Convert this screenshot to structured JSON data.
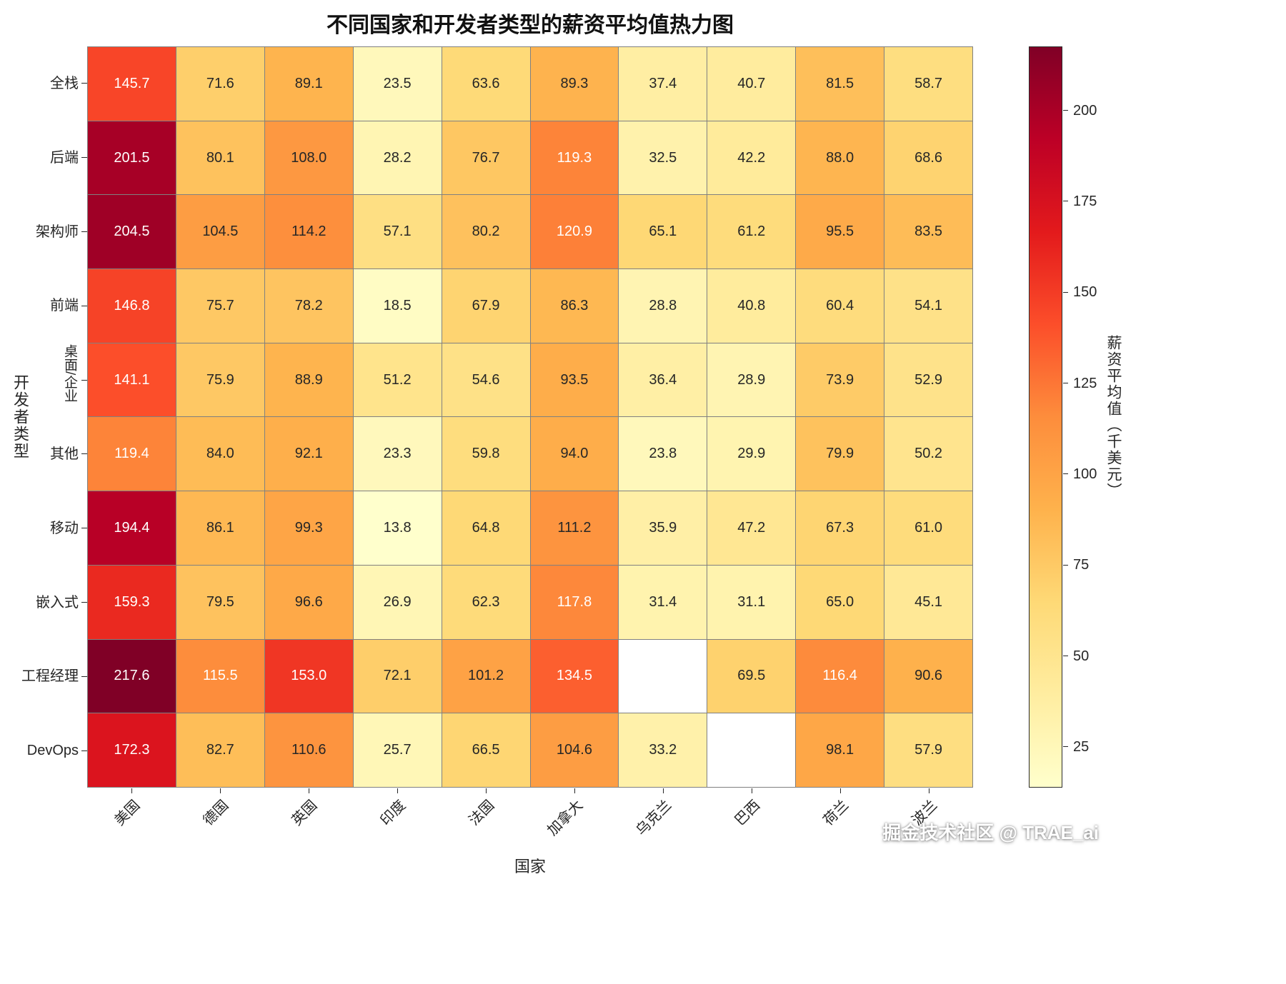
{
  "watermark": "掘金技术社区 @ TRAE_ai",
  "chart_data": {
    "type": "heatmap",
    "title": "不同国家和开发者类型的薪资平均值热力图",
    "xlabel": "国家",
    "ylabel": "开发者类型",
    "rows": [
      "全栈",
      "后端",
      "架构师",
      "前端",
      "桌面/企业",
      "其他",
      "移动",
      "嵌入式",
      "工程经理",
      "DevOps"
    ],
    "columns": [
      "美国",
      "德国",
      "英国",
      "印度",
      "法国",
      "加拿大",
      "乌克兰",
      "巴西",
      "荷兰",
      "波兰"
    ],
    "values": [
      [
        145.7,
        71.6,
        89.1,
        23.5,
        63.6,
        89.3,
        37.4,
        40.7,
        81.5,
        58.7
      ],
      [
        201.5,
        80.1,
        108.0,
        28.2,
        76.7,
        119.3,
        32.5,
        42.2,
        88.0,
        68.6
      ],
      [
        204.5,
        104.5,
        114.2,
        57.1,
        80.2,
        120.9,
        65.1,
        61.2,
        95.5,
        83.5
      ],
      [
        146.8,
        75.7,
        78.2,
        18.5,
        67.9,
        86.3,
        28.8,
        40.8,
        60.4,
        54.1
      ],
      [
        141.1,
        75.9,
        88.9,
        51.2,
        54.6,
        93.5,
        36.4,
        28.9,
        73.9,
        52.9
      ],
      [
        119.4,
        84.0,
        92.1,
        23.3,
        59.8,
        94.0,
        23.8,
        29.9,
        79.9,
        50.2
      ],
      [
        194.4,
        86.1,
        99.3,
        13.8,
        64.8,
        111.2,
        35.9,
        47.2,
        67.3,
        61.0
      ],
      [
        159.3,
        79.5,
        96.6,
        26.9,
        62.3,
        117.8,
        31.4,
        31.1,
        65.0,
        45.1
      ],
      [
        217.6,
        115.5,
        153.0,
        72.1,
        101.2,
        134.5,
        null,
        69.5,
        116.4,
        90.6
      ],
      [
        172.3,
        82.7,
        110.6,
        25.7,
        66.5,
        104.6,
        33.2,
        null,
        98.1,
        57.9
      ]
    ],
    "value_format": "0.1f",
    "vmin": 13.8,
    "vmax": 217.6,
    "colormap": "YlOrRd",
    "colormap_stops": [
      {
        "pos": 0.0,
        "color": "#ffffcc"
      },
      {
        "pos": 0.125,
        "color": "#ffeda0"
      },
      {
        "pos": 0.25,
        "color": "#fed976"
      },
      {
        "pos": 0.375,
        "color": "#feb24c"
      },
      {
        "pos": 0.5,
        "color": "#fd8d3c"
      },
      {
        "pos": 0.625,
        "color": "#fc4e2a"
      },
      {
        "pos": 0.75,
        "color": "#e31a1c"
      },
      {
        "pos": 0.875,
        "color": "#bd0026"
      },
      {
        "pos": 1.0,
        "color": "#800026"
      }
    ],
    "null_color": "#ffffff",
    "grid_line_color": "#808080",
    "annot_dark_color": "#262626",
    "annot_light_color": "#ffffff",
    "colorbar": {
      "label": "薪资平均值（千美元）",
      "ticks": [
        25,
        50,
        75,
        100,
        125,
        150,
        175,
        200
      ],
      "position": "right"
    },
    "grid": true,
    "x_tick_rotation": 45,
    "vertical_row_labels": [
      "桌面/企业"
    ]
  }
}
